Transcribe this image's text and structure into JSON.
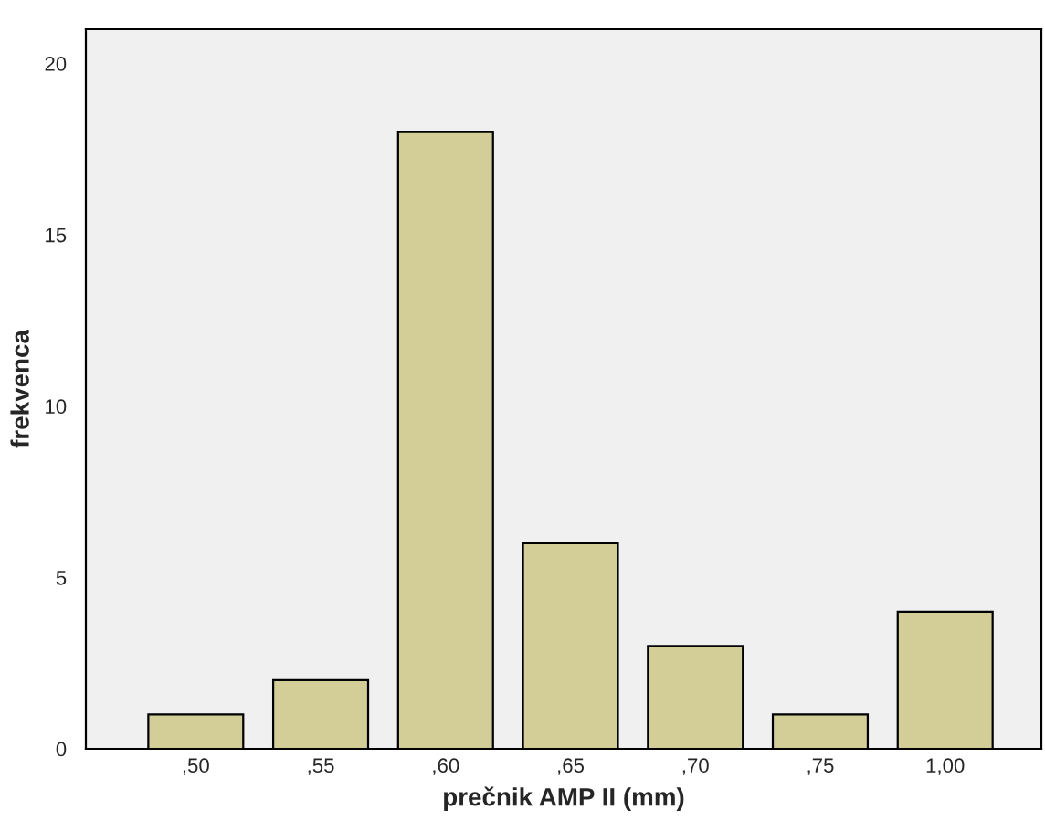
{
  "chart_data": {
    "type": "bar",
    "xlabel": "prečnik AMP II (mm)",
    "ylabel": "frekvenca",
    "categories": [
      ",50",
      ",55",
      ",60",
      ",65",
      ",70",
      ",75",
      "1,00"
    ],
    "values": [
      1,
      2,
      18,
      6,
      3,
      1,
      4
    ],
    "color": "#d3ce97",
    "ylim": [
      0,
      21
    ],
    "yticks": [
      0,
      5,
      10,
      15,
      20
    ],
    "grid": false
  }
}
